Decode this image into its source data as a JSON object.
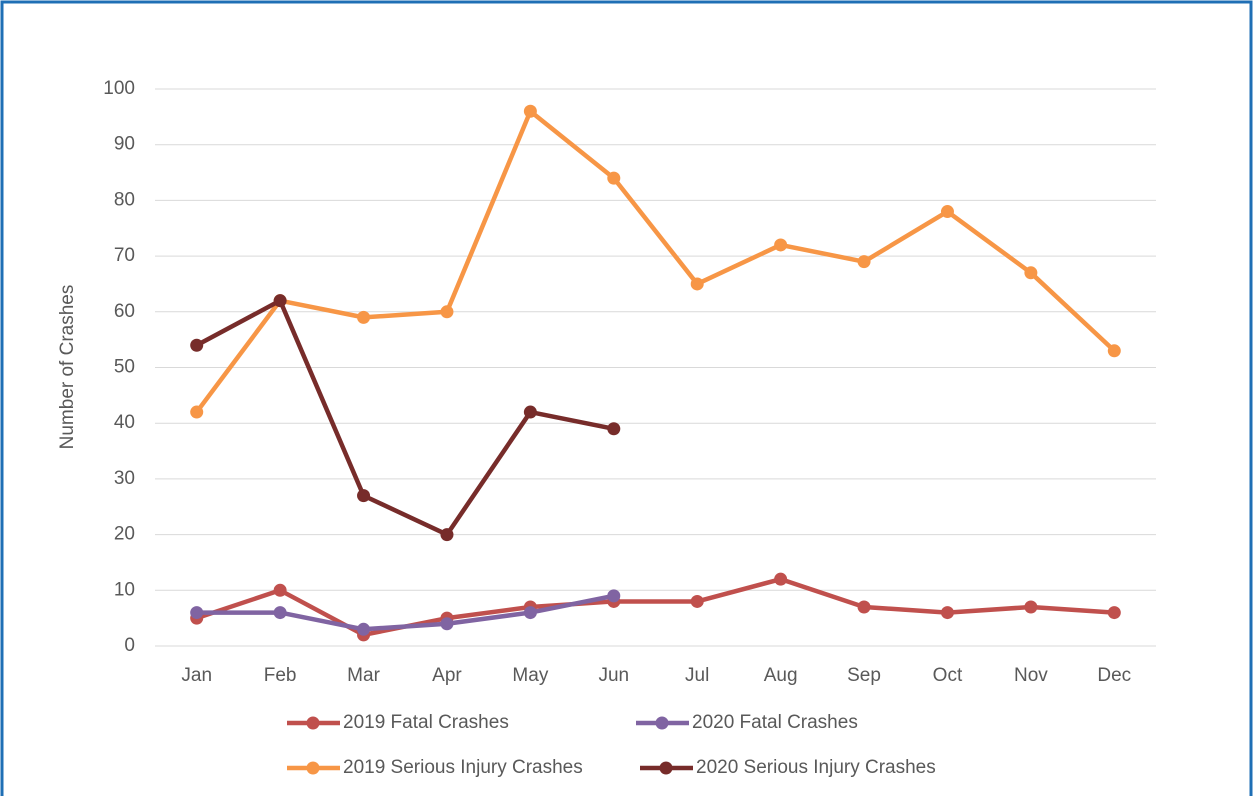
{
  "chart_data": {
    "type": "line",
    "y_label": "Number of Crashes",
    "categories": [
      "Jan",
      "Feb",
      "Mar",
      "Apr",
      "May",
      "Jun",
      "Jul",
      "Aug",
      "Sep",
      "Oct",
      "Nov",
      "Dec"
    ],
    "series": [
      {
        "name": "2019 Fatal Crashes",
        "color": "#c0504d",
        "values": [
          5,
          10,
          2,
          5,
          7,
          8,
          8,
          12,
          7,
          6,
          7,
          6
        ]
      },
      {
        "name": "2020 Fatal Crashes",
        "color": "#8064a2",
        "values": [
          6,
          6,
          3,
          4,
          6,
          9,
          null,
          null,
          null,
          null,
          null,
          null
        ]
      },
      {
        "name": "2019 Serious Injury Crashes",
        "color": "#f79646",
        "values": [
          42,
          62,
          59,
          60,
          96,
          84,
          65,
          72,
          69,
          78,
          67,
          53
        ]
      },
      {
        "name": "2020 Serious Injury Crashes",
        "color": "#772c2a",
        "values": [
          54,
          62,
          27,
          20,
          42,
          39,
          null,
          null,
          null,
          null,
          null,
          null
        ]
      }
    ],
    "ylim": [
      0,
      100
    ],
    "yticks": [
      0,
      10,
      20,
      30,
      40,
      50,
      60,
      70,
      80,
      90,
      100
    ],
    "grid": true,
    "legend": "bottom"
  }
}
